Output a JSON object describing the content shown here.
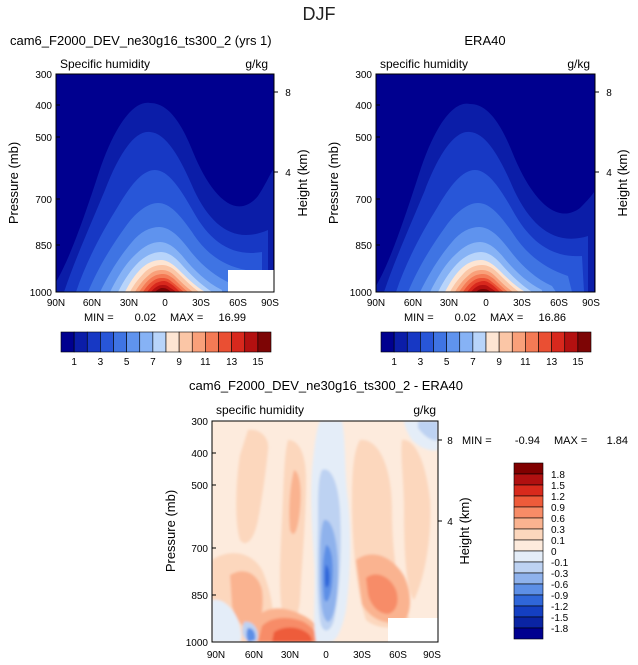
{
  "figure_title": "DJF",
  "chart_data": [
    {
      "type": "contour",
      "title": "cam6_F2000_DEV_ne30g16_ts300_2 (yrs 1)",
      "subtitle_left": "Specific humidity",
      "subtitle_right": "g/kg",
      "ylabel": "Pressure (mb)",
      "ylabel_right": "Height (km)",
      "xticks": [
        "90N",
        "60N",
        "30N",
        "0",
        "30S",
        "60S",
        "90S"
      ],
      "yticks": [
        "300",
        "400",
        "500",
        "700",
        "850",
        "1000"
      ],
      "yticks_right": [
        "8",
        "4"
      ],
      "stats": {
        "min_label": "MIN =",
        "min": "0.02",
        "max_label": "MAX =",
        "max": "16.99"
      },
      "colorbar_ticks": [
        "1",
        "3",
        "5",
        "7",
        "9",
        "11",
        "13",
        "15"
      ],
      "levels": [
        1,
        2,
        3,
        4,
        5,
        6,
        7,
        8,
        9,
        10,
        11,
        12,
        13,
        14,
        15
      ],
      "value_range": [
        0.02,
        16.99
      ]
    },
    {
      "type": "contour",
      "title": "ERA40",
      "subtitle_left": "specific humidity",
      "subtitle_right": "g/kg",
      "ylabel": "Pressure (mb)",
      "ylabel_right": "Height (km)",
      "xticks": [
        "90N",
        "60N",
        "30N",
        "0",
        "30S",
        "60S",
        "90S"
      ],
      "yticks": [
        "300",
        "400",
        "500",
        "700",
        "850",
        "1000"
      ],
      "yticks_right": [
        "8",
        "4"
      ],
      "stats": {
        "min_label": "MIN =",
        "min": "0.02",
        "max_label": "MAX =",
        "max": "16.86"
      },
      "colorbar_ticks": [
        "1",
        "3",
        "5",
        "7",
        "9",
        "11",
        "13",
        "15"
      ],
      "levels": [
        1,
        2,
        3,
        4,
        5,
        6,
        7,
        8,
        9,
        10,
        11,
        12,
        13,
        14,
        15
      ],
      "value_range": [
        0.02,
        16.86
      ]
    },
    {
      "type": "contour",
      "title": "cam6_F2000_DEV_ne30g16_ts300_2 - ERA40",
      "subtitle_left": "specific humidity",
      "subtitle_right": "g/kg",
      "ylabel": "Pressure (mb)",
      "ylabel_right": "Height (km)",
      "xticks": [
        "90N",
        "60N",
        "30N",
        "0",
        "30S",
        "60S",
        "90S"
      ],
      "yticks": [
        "300",
        "400",
        "500",
        "700",
        "850",
        "1000"
      ],
      "yticks_right": [
        "8",
        "4"
      ],
      "stats": {
        "min_label": "MIN =",
        "min": "-0.94",
        "max_label": "MAX =",
        "max": "1.84"
      },
      "colorbar_ticks": [
        "1.8",
        "1.5",
        "1.2",
        "0.9",
        "0.6",
        "0.3",
        "0.1",
        "0",
        "-0.1",
        "-0.3",
        "-0.6",
        "-0.9",
        "-1.2",
        "-1.5",
        "-1.8"
      ],
      "value_range": [
        -0.94,
        1.84
      ]
    }
  ],
  "colors": {
    "abs_scale": [
      "#00008f",
      "#0b1da8",
      "#1738c4",
      "#2856d8",
      "#3f74e3",
      "#5f93ee",
      "#86b2f5",
      "#b8d4fa",
      "#fde5d3",
      "#fbc6a6",
      "#f9a07a",
      "#f47a55",
      "#ea4f33",
      "#d8281d",
      "#b31010",
      "#7d0505"
    ],
    "diff_scale": [
      "#800000",
      "#b01010",
      "#d82a1c",
      "#ee5b3a",
      "#f78c67",
      "#fab390",
      "#fcd7bd",
      "#fdebdd",
      "#e4edf8",
      "#bdd2f2",
      "#8fb2ec",
      "#5d8fe6",
      "#2f66d9",
      "#143fc2",
      "#0a24a3",
      "#00008f"
    ]
  }
}
